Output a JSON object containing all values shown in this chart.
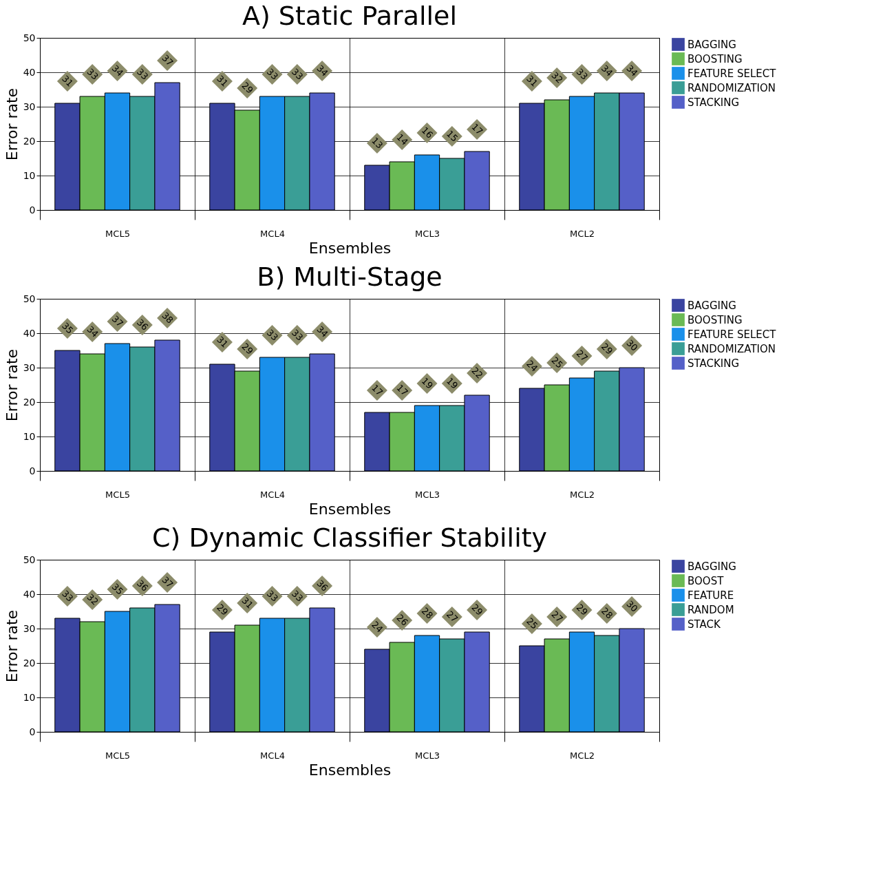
{
  "chart_data": [
    {
      "type": "bar",
      "title": "A) Static Parallel",
      "xlabel": "Ensembles",
      "ylabel": "Error rate",
      "categories": [
        "MCL5",
        "MCL4",
        "MCL3",
        "MCL2"
      ],
      "ylim": [
        0,
        50
      ],
      "yticks": [
        0,
        10,
        20,
        30,
        40,
        50
      ],
      "grid": true,
      "legend": "right",
      "data_labels": true,
      "series": [
        {
          "name": "BAGGING",
          "color": "#3a44a0",
          "values": [
            31,
            31,
            13,
            31
          ]
        },
        {
          "name": "BOOSTING",
          "color": "#6aba55",
          "values": [
            33,
            29,
            14,
            32
          ]
        },
        {
          "name": "FEATURE SELECT",
          "color": "#1a90ea",
          "values": [
            34,
            33,
            16,
            33
          ]
        },
        {
          "name": "RANDOMIZATION",
          "color": "#3a9e96",
          "values": [
            33,
            33,
            15,
            34
          ]
        },
        {
          "name": "STACKING",
          "color": "#5560c8",
          "values": [
            37,
            34,
            17,
            34
          ]
        }
      ]
    },
    {
      "type": "bar",
      "title": "B) Multi-Stage",
      "xlabel": "Ensembles",
      "ylabel": "Error rate",
      "categories": [
        "MCL5",
        "MCL4",
        "MCL3",
        "MCL2"
      ],
      "ylim": [
        0,
        50
      ],
      "yticks": [
        0,
        10,
        20,
        30,
        40,
        50
      ],
      "grid": true,
      "legend": "right",
      "data_labels": true,
      "series": [
        {
          "name": "BAGGING",
          "color": "#3a44a0",
          "values": [
            35,
            31,
            17,
            24
          ]
        },
        {
          "name": "BOOSTING",
          "color": "#6aba55",
          "values": [
            34,
            29,
            17,
            25
          ]
        },
        {
          "name": "FEATURE SELECT",
          "color": "#1a90ea",
          "values": [
            37,
            33,
            19,
            27
          ]
        },
        {
          "name": "RANDOMIZATION",
          "color": "#3a9e96",
          "values": [
            36,
            33,
            19,
            29
          ]
        },
        {
          "name": "STACKING",
          "color": "#5560c8",
          "values": [
            38,
            34,
            22,
            30
          ]
        }
      ]
    },
    {
      "type": "bar",
      "title": "C) Dynamic Classifier Stability",
      "xlabel": "Ensembles",
      "ylabel": "Error rate",
      "categories": [
        "MCL5",
        "MCL4",
        "MCL3",
        "MCL2"
      ],
      "ylim": [
        0,
        50
      ],
      "yticks": [
        0,
        10,
        20,
        30,
        40,
        50
      ],
      "grid": true,
      "legend": "right",
      "data_labels": true,
      "series": [
        {
          "name": "BAGGING",
          "color": "#3a44a0",
          "values": [
            33,
            29,
            24,
            25
          ]
        },
        {
          "name": "BOOST",
          "color": "#6aba55",
          "values": [
            32,
            31,
            26,
            27
          ]
        },
        {
          "name": "FEATURE",
          "color": "#1a90ea",
          "values": [
            35,
            33,
            28,
            29
          ]
        },
        {
          "name": "RANDOM",
          "color": "#3a9e96",
          "values": [
            36,
            33,
            27,
            28
          ]
        },
        {
          "name": "STACK",
          "color": "#5560c8",
          "values": [
            37,
            36,
            29,
            30
          ]
        }
      ]
    }
  ]
}
